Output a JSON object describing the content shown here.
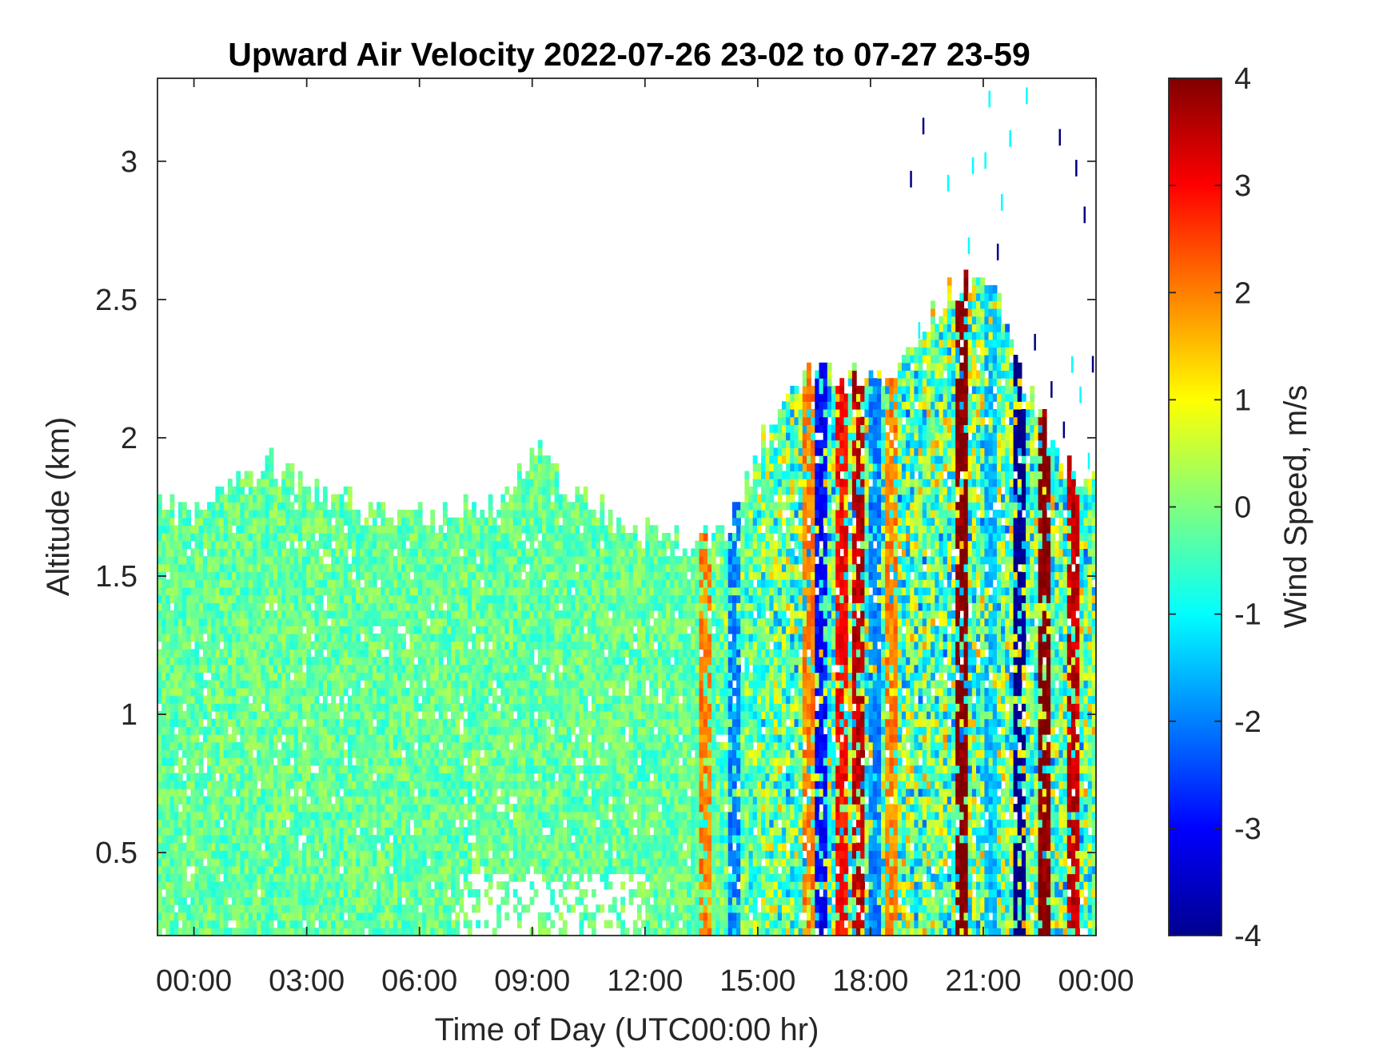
{
  "chart_data": {
    "type": "heatmap",
    "title": "Upward Air Velocity 2022-07-26 23-02 to 07-27 23-59",
    "xlabel": "Time of Day (UTC00:00 hr)",
    "ylabel": "Altitude (km)",
    "colorbar_label": "Wind Speed, m/s",
    "x_ticks": [
      "00:00",
      "03:00",
      "06:00",
      "09:00",
      "12:00",
      "15:00",
      "18:00",
      "21:00",
      "00:00"
    ],
    "x_tick_hours": [
      0,
      3,
      6,
      9,
      12,
      15,
      18,
      21,
      24
    ],
    "xlim_hours": [
      -0.97,
      24
    ],
    "y_ticks": [
      "0.5",
      "1",
      "1.5",
      "2",
      "2.5",
      "3"
    ],
    "y_tick_values": [
      0.5,
      1,
      1.5,
      2,
      2.5,
      3
    ],
    "ylim": [
      0.2,
      3.3
    ],
    "colorbar_ticks": [
      "-4",
      "-3",
      "-2",
      "-1",
      "0",
      "1",
      "2",
      "3",
      "4"
    ],
    "colorbar_tick_values": [
      -4,
      -3,
      -2,
      -1,
      0,
      1,
      2,
      3,
      4
    ],
    "clim": [
      -4,
      4
    ],
    "colormap": "jet",
    "grid": false,
    "data_top_profile": {
      "hours": [
        -0.97,
        0,
        1,
        2,
        3,
        4,
        5,
        6,
        7,
        8,
        9,
        10,
        11,
        12,
        13,
        14,
        15,
        16,
        17,
        18,
        19,
        20,
        21,
        22,
        23,
        24
      ],
      "top_km": [
        1.75,
        1.7,
        1.8,
        1.9,
        1.8,
        1.75,
        1.7,
        1.7,
        1.7,
        1.75,
        1.95,
        1.8,
        1.7,
        1.65,
        1.6,
        1.62,
        1.95,
        2.2,
        2.2,
        2.2,
        2.3,
        2.5,
        2.6,
        2.2,
        1.9,
        1.85
      ]
    },
    "vertical_bands": [
      {
        "hour": 13.5,
        "velocity": 2.0
      },
      {
        "hour": 14.3,
        "velocity": -2.0
      },
      {
        "hour": 16.3,
        "velocity": 2.0
      },
      {
        "hour": 16.6,
        "velocity": -3.0
      },
      {
        "hour": 17.2,
        "velocity": 3.0
      },
      {
        "hour": 17.6,
        "velocity": 3.5
      },
      {
        "hour": 18.1,
        "velocity": -2.0
      },
      {
        "hour": 18.5,
        "velocity": 2.0
      },
      {
        "hour": 20.4,
        "velocity": 4.0
      },
      {
        "hour": 21.1,
        "velocity": -1.5
      },
      {
        "hour": 21.9,
        "velocity": -4.0
      },
      {
        "hour": 22.6,
        "velocity": 4.0
      },
      {
        "hour": 23.3,
        "velocity": 3.5
      }
    ]
  }
}
